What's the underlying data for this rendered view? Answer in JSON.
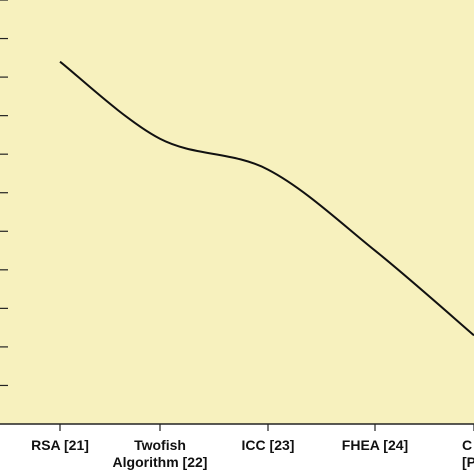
{
  "chart_data": {
    "type": "line",
    "categories": [
      "RSA [21]",
      "Twofish Algorithm [22]",
      "ICC [23]",
      "FHEA [24]",
      "C... [Prop..."
    ],
    "category_lines": [
      [
        "RSA [21]"
      ],
      [
        "Twofish",
        "Algorithm [22]"
      ],
      [
        "ICC [23]"
      ],
      [
        "FHEA [24]"
      ],
      [
        "C",
        "[Prop"
      ]
    ],
    "series": [
      {
        "values": [
          9.4,
          7.4,
          6.6,
          4.5,
          2.3
        ]
      }
    ],
    "ylim": [
      0,
      11
    ],
    "grid": false,
    "line_color": "#111111",
    "plot_background": "#f7f1be",
    "axis_color": "#222222"
  }
}
